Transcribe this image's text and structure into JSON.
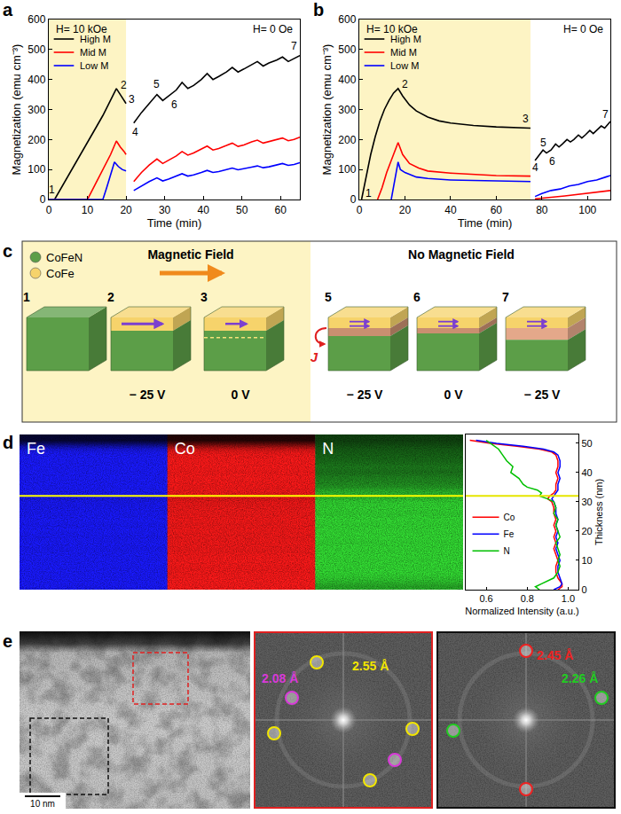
{
  "panel_labels": [
    "a",
    "b",
    "c",
    "d",
    "e"
  ],
  "chart_data": [
    {
      "type": "line",
      "x_label": "Time (min)",
      "y_label": "Magnetization (emu cm⁻³)",
      "xlim": [
        0,
        65
      ],
      "xticks": [
        0,
        10,
        20,
        30,
        40,
        50,
        60
      ],
      "ylim": [
        0,
        600
      ],
      "yticks": [
        0,
        100,
        200,
        300,
        400,
        500,
        600
      ],
      "grid": false,
      "legend": "upper left",
      "field_on": {
        "text": "H= 10 kOe",
        "x_range": [
          0,
          20
        ]
      },
      "field_off": {
        "text": "H= 0 Oe"
      },
      "series": [
        {
          "name": "High M",
          "color": "#000000",
          "x": [
            1.5,
            4,
            6,
            8,
            10,
            12,
            14,
            16,
            17.5,
            18.5,
            19.5,
            20,
            21,
            22,
            24,
            26,
            28,
            29.5,
            31,
            33,
            34.5,
            36,
            37.5,
            39.5,
            41,
            42.5,
            44,
            46,
            47.5,
            49,
            50.5,
            52.5,
            54,
            55.5,
            57,
            59,
            60.5,
            62,
            63.5,
            65
          ],
          "values": [
            0,
            55,
            100,
            145,
            190,
            235,
            280,
            330,
            370,
            350,
            330,
            320,
            null,
            255,
            290,
            320,
            350,
            330,
            345,
            365,
            390,
            370,
            380,
            400,
            420,
            400,
            410,
            425,
            440,
            425,
            435,
            450,
            460,
            445,
            455,
            465,
            475,
            460,
            470,
            480
          ]
        },
        {
          "name": "Mid M",
          "color": "#ff0000",
          "x": [
            0,
            10,
            12,
            14,
            16,
            17.5,
            18.5,
            19.5,
            20,
            21,
            22,
            24,
            26,
            28,
            29.5,
            31,
            33,
            34.5,
            36,
            37.5,
            39.5,
            41,
            42.5,
            44,
            46,
            47.5,
            49,
            50.5,
            52.5,
            54,
            55.5,
            57,
            59,
            60.5,
            62,
            63.5,
            65
          ],
          "values": [
            0,
            0,
            50,
            100,
            150,
            195,
            175,
            160,
            150,
            null,
            60,
            90,
            115,
            135,
            120,
            130,
            145,
            160,
            148,
            155,
            168,
            178,
            165,
            170,
            180,
            188,
            177,
            182,
            192,
            198,
            188,
            193,
            200,
            205,
            196,
            200,
            208
          ]
        },
        {
          "name": "Low M",
          "color": "#0000ff",
          "x": [
            0,
            14,
            15,
            16,
            17,
            18,
            19,
            20,
            21,
            22,
            24,
            26,
            28,
            29.5,
            31,
            33,
            34.5,
            36,
            37.5,
            39.5,
            41,
            42.5,
            44,
            46,
            47.5,
            49,
            50.5,
            52.5,
            54,
            55.5,
            57,
            59,
            60.5,
            62,
            63.5,
            65
          ],
          "values": [
            0,
            0,
            40,
            85,
            125,
            110,
            100,
            95,
            null,
            30,
            45,
            60,
            72,
            62,
            68,
            78,
            86,
            78,
            82,
            90,
            97,
            90,
            93,
            100,
            105,
            99,
            102,
            108,
            112,
            106,
            109,
            115,
            120,
            114,
            117,
            123
          ]
        }
      ],
      "point_labels": [
        {
          "text": "1",
          "x": 0.9,
          "y": 32
        },
        {
          "text": "2",
          "x": 19.5,
          "y": 380
        },
        {
          "text": "3",
          "x": 21.5,
          "y": 335
        },
        {
          "text": "4",
          "x": 22.5,
          "y": 225
        },
        {
          "text": "5",
          "x": 28,
          "y": 385
        },
        {
          "text": "6",
          "x": 32.5,
          "y": 315
        },
        {
          "text": "7",
          "x": 63.5,
          "y": 510
        }
      ]
    },
    {
      "type": "line",
      "x_label": "Time (min)",
      "y_label": "Magnetization (emu cm⁻³)",
      "xlim": [
        0,
        110
      ],
      "xticks": [
        0,
        20,
        40,
        60,
        80,
        100
      ],
      "ylim": [
        0,
        600
      ],
      "yticks": [
        0,
        100,
        200,
        300,
        400,
        500,
        600
      ],
      "grid": false,
      "legend": "upper left",
      "field_on": {
        "text": "H= 10 kOe",
        "x_range": [
          0,
          75
        ]
      },
      "field_off": {
        "text": "H= 0 Oe"
      },
      "series": [
        {
          "name": "High M",
          "color": "#000000",
          "x": [
            1,
            3,
            5,
            7,
            9,
            11,
            13,
            15,
            17,
            19,
            22,
            25,
            30,
            35,
            40,
            50,
            60,
            75,
            76,
            77,
            79,
            80.5,
            82,
            84,
            86,
            87.5,
            89,
            91,
            92.5,
            94,
            96,
            97.5,
            99,
            101,
            102.5,
            104,
            106,
            107.5,
            109,
            110
          ],
          "values": [
            0,
            80,
            150,
            210,
            260,
            300,
            330,
            355,
            370,
            345,
            315,
            295,
            275,
            262,
            255,
            247,
            242,
            238,
            null,
            130,
            150,
            165,
            155,
            165,
            185,
            175,
            185,
            200,
            192,
            200,
            215,
            205,
            215,
            230,
            220,
            230,
            245,
            238,
            250,
            260
          ]
        },
        {
          "name": "Mid M",
          "color": "#ff0000",
          "x": [
            8,
            10,
            12,
            14,
            16,
            17,
            19,
            22,
            26,
            30,
            40,
            50,
            60,
            75,
            76,
            77,
            80,
            85,
            90,
            95,
            100,
            105,
            110
          ],
          "values": [
            0,
            40,
            90,
            130,
            170,
            190,
            150,
            120,
            105,
            95,
            88,
            83,
            80,
            78,
            null,
            2,
            5,
            8,
            12,
            17,
            21,
            25,
            30
          ]
        },
        {
          "name": "Low M",
          "color": "#0000ff",
          "x": [
            14,
            15.5,
            17,
            18,
            20,
            25,
            30,
            40,
            50,
            60,
            75,
            76,
            77,
            80,
            84,
            88,
            92,
            96,
            100,
            104,
            108,
            110
          ],
          "values": [
            0,
            60,
            125,
            100,
            90,
            75,
            70,
            65,
            63,
            62,
            60,
            null,
            10,
            20,
            30,
            35,
            45,
            50,
            60,
            65,
            75,
            80
          ]
        }
      ],
      "point_labels": [
        {
          "text": "1",
          "x": 4,
          "y": 22
        },
        {
          "text": "2",
          "x": 20,
          "y": 385
        },
        {
          "text": "3",
          "x": 73,
          "y": 270
        },
        {
          "text": "4",
          "x": 77,
          "y": 105
        },
        {
          "text": "5",
          "x": 80.5,
          "y": 190
        },
        {
          "text": "6",
          "x": 84.5,
          "y": 128
        },
        {
          "text": "7",
          "x": 108,
          "y": 285
        }
      ]
    },
    {
      "type": "line",
      "x_label": "Normalized Intensity (a.u.)",
      "y_label": "Thickness (nm)",
      "xlim": [
        0.5,
        1.05
      ],
      "xticks": [
        0.6,
        0.8,
        {
          "value": 1,
          "label": "1.0"
        }
      ],
      "ylim": [
        0,
        53
      ],
      "yticks": [
        0,
        10,
        20,
        30,
        40,
        50
      ],
      "grid": false,
      "legend": "left",
      "series": [
        {
          "name": "Co",
          "color": "#ff0000",
          "y": [
            0,
            1,
            2,
            4,
            6,
            8,
            10,
            12,
            14,
            16,
            18,
            20,
            22,
            24,
            26,
            28,
            30,
            31,
            32,
            33,
            34,
            36,
            38,
            40,
            42,
            44,
            46,
            47,
            48,
            49,
            50,
            51
          ],
          "x": [
            0.95,
            0.97,
            0.97,
            0.95,
            0.94,
            0.94,
            0.95,
            0.94,
            0.93,
            0.94,
            0.93,
            0.94,
            0.93,
            0.94,
            0.93,
            0.93,
            0.92,
            0.9,
            0.91,
            0.93,
            0.94,
            0.94,
            0.95,
            0.94,
            0.95,
            0.95,
            0.94,
            0.92,
            0.86,
            0.75,
            0.62,
            0.52
          ]
        },
        {
          "name": "Fe",
          "color": "#0000ff",
          "y": [
            0,
            1,
            2,
            4,
            6,
            8,
            10,
            12,
            14,
            16,
            18,
            20,
            22,
            24,
            26,
            28,
            30,
            31,
            32,
            33,
            34,
            36,
            38,
            40,
            42,
            44,
            46,
            47,
            48,
            49,
            50,
            51
          ],
          "x": [
            0.93,
            0.96,
            0.97,
            0.96,
            0.95,
            0.95,
            0.96,
            0.95,
            0.94,
            0.95,
            0.94,
            0.95,
            0.94,
            0.95,
            0.94,
            0.94,
            0.93,
            0.92,
            0.93,
            0.94,
            0.95,
            0.95,
            0.96,
            0.95,
            0.96,
            0.96,
            0.95,
            0.93,
            0.88,
            0.78,
            0.65,
            0.55
          ]
        },
        {
          "name": "N",
          "color": "#00c000",
          "y": [
            0,
            1,
            2,
            3,
            4,
            6,
            8,
            10,
            12,
            14,
            16,
            18,
            20,
            22,
            24,
            26,
            28,
            30,
            31,
            32,
            33,
            34,
            35,
            36,
            38,
            40,
            42,
            44,
            46,
            48,
            50,
            51
          ],
          "x": [
            0.86,
            0.84,
            0.87,
            0.9,
            0.93,
            0.95,
            0.96,
            0.95,
            0.96,
            0.95,
            0.94,
            0.96,
            0.95,
            0.94,
            0.95,
            0.93,
            0.94,
            0.93,
            0.9,
            0.86,
            0.87,
            0.85,
            0.8,
            0.78,
            0.76,
            0.72,
            0.73,
            0.7,
            0.68,
            0.66,
            0.62,
            0.6
          ]
        }
      ]
    }
  ],
  "panel_c": {
    "legend": [
      {
        "label": "CoFeN",
        "color": "#5c9e48"
      },
      {
        "label": "CoFe",
        "color": "#f6d36b"
      }
    ],
    "sections": [
      "Magnetic Field",
      "No Magnetic Field"
    ],
    "steps": [
      {
        "label": "1"
      },
      {
        "label": "2",
        "voltage": "− 25 V"
      },
      {
        "label": "3",
        "voltage": "0 V"
      },
      {
        "label": "5",
        "voltage": "− 25 V",
        "current": "J"
      },
      {
        "label": "6",
        "voltage": "0 V"
      },
      {
        "label": "7",
        "voltage": "− 25 V"
      }
    ]
  },
  "panel_d": {
    "maps": [
      {
        "label": "Fe",
        "color": "#1a1aff"
      },
      {
        "label": "Co",
        "color": "#ff1a1a"
      },
      {
        "label": "N",
        "color": "#33dd33"
      }
    ],
    "boundary_thickness": 32
  },
  "panel_e": {
    "scale_bar": "10 nm",
    "fft": [
      {
        "box_color": "#e02020",
        "spots": [
          {
            "label": "2.55 Å",
            "color": "#f2e600"
          },
          {
            "label": "2.08 Å",
            "color": "#d83ad8"
          }
        ]
      },
      {
        "box_color": "#111111",
        "spots": [
          {
            "label": "2.45 Å",
            "color": "#ee2222"
          },
          {
            "label": "2.26 Å",
            "color": "#22cc22"
          }
        ]
      }
    ]
  }
}
